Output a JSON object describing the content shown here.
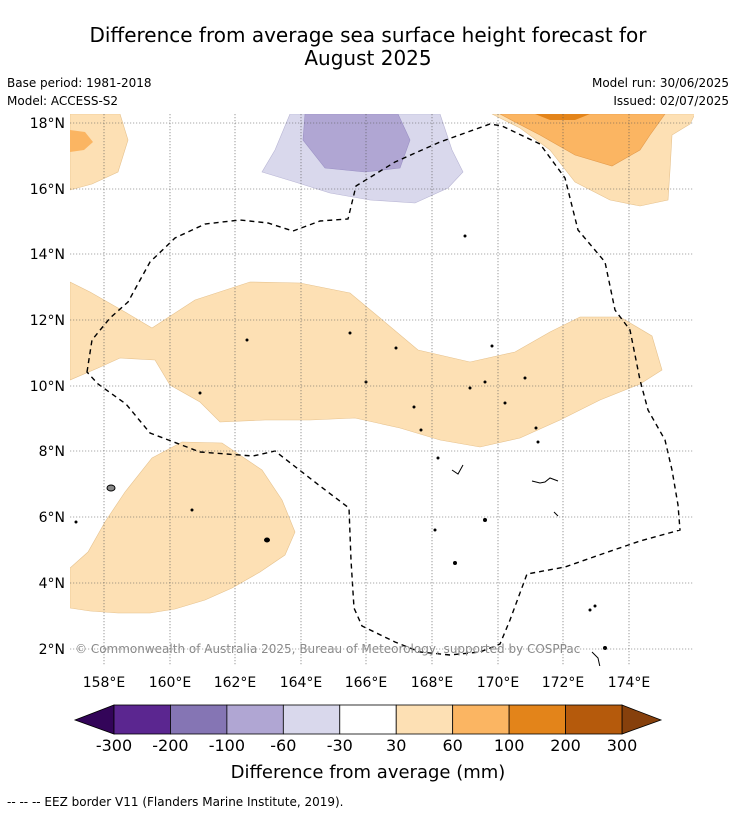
{
  "title_line1": "Difference from average sea surface height forecast for",
  "title_line2": "August 2025",
  "base_period": "Base period: 1981-2018",
  "model": "Model: ACCESS-S2",
  "model_run": "Model run: 30/06/2025",
  "issued": "Issued: 02/07/2025",
  "copyright": "© Commonwealth of Australia 2025, Bureau of Meteorology, supported by COSPPac",
  "lat_ticks": [
    "18°N",
    "16°N",
    "14°N",
    "12°N",
    "10°N",
    "8°N",
    "6°N",
    "4°N",
    "2°N"
  ],
  "lon_ticks": [
    "158°E",
    "160°E",
    "162°E",
    "164°E",
    "166°E",
    "168°E",
    "170°E",
    "172°E",
    "174°E"
  ],
  "colorbar": {
    "labels": [
      "-300",
      "-200",
      "-100",
      "-60",
      "-30",
      "30",
      "60",
      "100",
      "200",
      "300"
    ],
    "colors": [
      "#5b2690",
      "#8575b4",
      "#b0a6d3",
      "#d9d8ec",
      "#ffffff",
      "#fde0b4",
      "#fbb562",
      "#e3841a",
      "#b55a0c"
    ],
    "under_color": "#330559",
    "over_color": "#86400c",
    "title": "Difference from average (mm)"
  },
  "footer": "--  --  -- EEZ border V11 (Flanders Marine Institute, 2019)."
}
